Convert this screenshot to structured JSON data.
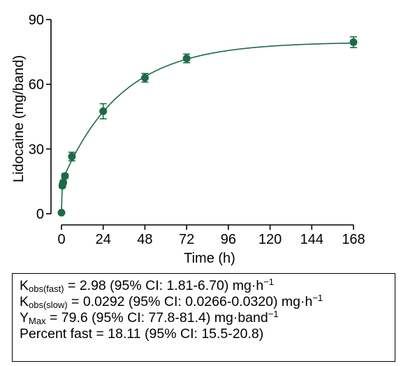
{
  "chart_data": {
    "type": "scatter",
    "title": "",
    "xlabel": "Time (h)",
    "ylabel": "Lidocaine (mg/band)",
    "xlim": [
      0,
      168
    ],
    "ylim": [
      0,
      90
    ],
    "x_ticks": [
      0,
      24,
      48,
      72,
      96,
      120,
      144,
      168
    ],
    "y_ticks": [
      0,
      30,
      60,
      90
    ],
    "grid": false,
    "color": "#1a6b45",
    "series": [
      {
        "x": [
          0,
          0.5,
          1,
          2,
          6,
          24,
          48,
          72,
          168
        ],
        "y": [
          0.5,
          13,
          14.5,
          17.5,
          26.5,
          47.5,
          63,
          72,
          79.5
        ],
        "error": [
          0,
          1,
          1,
          1,
          2,
          3.5,
          2,
          2,
          2.5
        ]
      }
    ],
    "fit": {
      "model": "two-phase association",
      "y0": 0,
      "plateau": 79.6,
      "k_fast": 2.98,
      "k_slow": 0.0292,
      "percent_fast": 18.11
    },
    "annotations": [
      {
        "main": "K",
        "sub": "obs(fast)",
        "rest": " = 2.98 (95% CI: 1.81-6.70) mg·h",
        "sup": "−1",
        "tail": ""
      },
      {
        "main": "K",
        "sub": "obs(slow)",
        "rest": " = 0.0292 (95% CI: 0.0266-0.0320) mg·h",
        "sup": "−1",
        "tail": ""
      },
      {
        "main": "Y",
        "sub": "Max",
        "rest": " = 79.6 (95% CI: 77.8-81.4) mg·band",
        "sup": "−1",
        "tail": ""
      },
      {
        "main": "Percent fast = 18.11 (95% CI: 15.5-20.8)",
        "sub": "",
        "rest": "",
        "sup": "",
        "tail": ""
      }
    ]
  }
}
